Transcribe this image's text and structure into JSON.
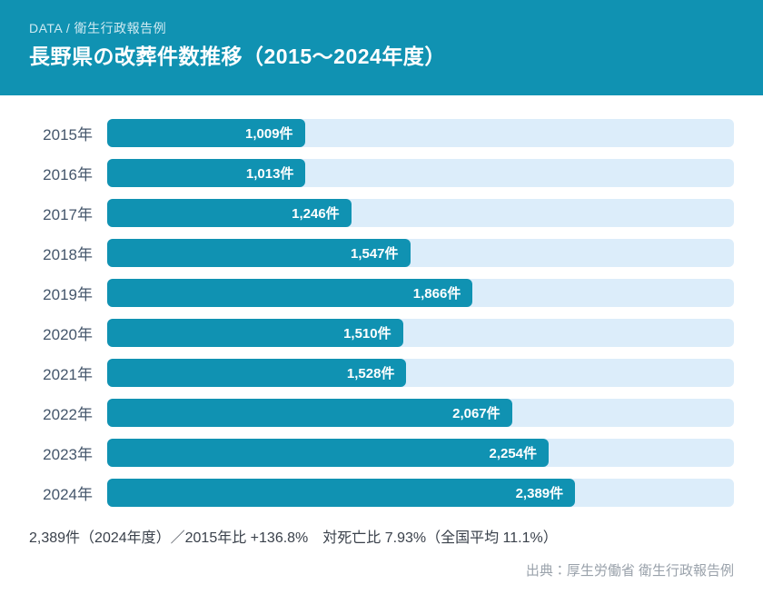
{
  "colors": {
    "accent": "#1092B2",
    "bar": "#1092B2",
    "track": "#DCEDFA",
    "label": "#44566B",
    "value_text": "#ffffff",
    "summary_text": "#3A414B",
    "source_text": "#9AA2AB",
    "eyebrow_text": "#CFEAF2"
  },
  "header": {
    "eyebrow": "DATA / 衛生行政報告例",
    "title": "長野県の改葬件数推移（2015～2024年度）"
  },
  "chart_data": {
    "type": "bar",
    "orientation": "horizontal",
    "title": "長野県の改葬件数推移（2015～2024年度）",
    "categories": [
      "2015年",
      "2016年",
      "2017年",
      "2018年",
      "2019年",
      "2020年",
      "2021年",
      "2022年",
      "2023年",
      "2024年"
    ],
    "values": [
      1009,
      1013,
      1246,
      1547,
      1866,
      1510,
      1528,
      2067,
      2254,
      2389
    ],
    "value_labels": [
      "1,009件",
      "1,013件",
      "1,246件",
      "1,547件",
      "1,866件",
      "1,510件",
      "1,528件",
      "2,067件",
      "2,254件",
      "2,389件"
    ],
    "xlabel": "",
    "ylabel": "",
    "xlim": [
      0,
      3200
    ],
    "grid": false,
    "legend": false,
    "unit": "件"
  },
  "footer": {
    "summary": "2,389件（2024年度）／2015年比 +136.8%　対死亡比 7.93%（全国平均 11.1%）",
    "source": "出典：厚生労働省 衛生行政報告例"
  }
}
